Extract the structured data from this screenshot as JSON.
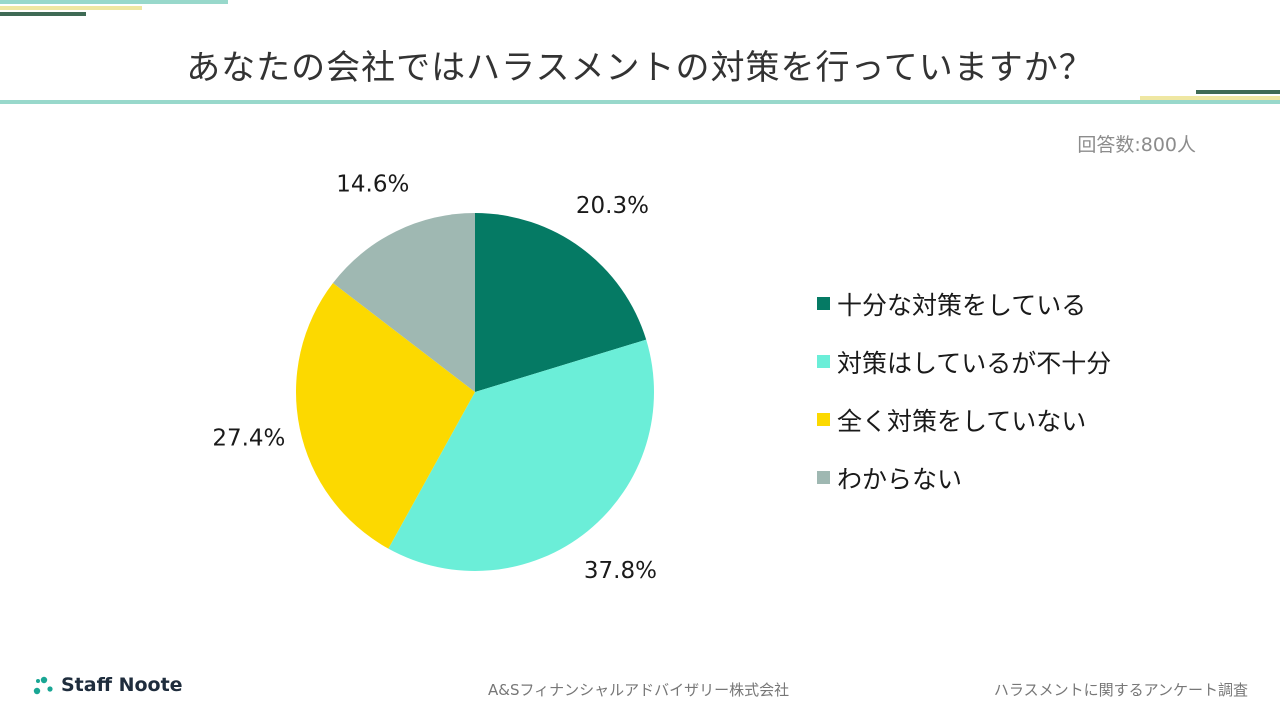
{
  "title": "あなたの会社ではハラスメントの対策を行っていますか？",
  "respondents": "回答数:800人",
  "chart_data": {
    "type": "pie",
    "title": "あなたの会社ではハラスメントの対策を行っていますか？",
    "categories": [
      "十分な対策をしている",
      "対策はしているが不十分",
      "全く対策をしていない",
      "わからない"
    ],
    "values": [
      20.3,
      37.8,
      27.4,
      14.6
    ],
    "value_labels": [
      "20.3%",
      "37.8%",
      "27.4%",
      "14.6%"
    ],
    "colors": [
      "#057a64",
      "#6beed8",
      "#fcd900",
      "#9fb8b2"
    ],
    "start_angle": "12 o'clock",
    "direction": "clockwise",
    "legend_position": "right"
  },
  "footer": {
    "brand": "Staff Noote",
    "company": "A&Sフィナンシャルアドバイザリー株式会社",
    "survey": "ハラスメントに関するアンケート調査"
  },
  "colors": {
    "accent_teal": "#98d8cb",
    "accent_dark": "#3f6b55",
    "accent_yellow": "#efe7a2",
    "brand_icon": "#19a694"
  }
}
